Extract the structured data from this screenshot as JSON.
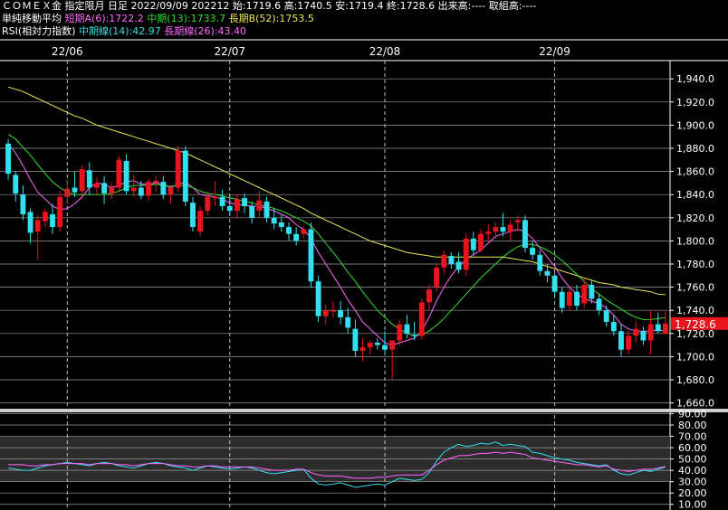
{
  "header": {
    "line1": "ＣＯＭＥＸ金 指定限月 日足 2022/09/09 202212 始:1719.6 高:1740.5 安:1719.4 終:1728.6 出来高:---- 取組高:----",
    "ma_label": "単純移動平均",
    "ma_short": "短期A(6):1722.2",
    "ma_mid": "中期(13):1733.7",
    "ma_long": "長期B(52):1753.5",
    "rsi_label": "RSI(相対力指数)",
    "rsi_mid": "中期線(14):42.97",
    "rsi_long": "長期線(26):43.40"
  },
  "colors": {
    "up": "#e8141e",
    "down": "#33e0ee",
    "ma_short": "#ff66ff",
    "ma_mid": "#33dd33",
    "ma_long": "#e8e855",
    "last_price_bg": "#e8141e"
  },
  "chart_data": [
    {
      "type": "candlestick",
      "title": "ＣＯＭＥＸ金 日足",
      "x_tick_labels": [
        "22/06",
        "22/07",
        "22/08",
        "22/09"
      ],
      "y_ticks": [
        "1,940.0",
        "1,920.0",
        "1,900.0",
        "1,880.0",
        "1,860.0",
        "1,840.0",
        "1,820.0",
        "1,800.0",
        "1,780.0",
        "1,760.0",
        "1,740.0",
        "1,720.0",
        "1,700.0",
        "1,680.0",
        "1,660.0"
      ],
      "ylim": [
        1655,
        1955
      ],
      "last_price": "1,728.6",
      "candles": [
        {
          "o": 1884,
          "h": 1888,
          "l": 1853,
          "c": 1858
        },
        {
          "o": 1857,
          "h": 1860,
          "l": 1834,
          "c": 1841
        },
        {
          "o": 1840,
          "h": 1848,
          "l": 1818,
          "c": 1823
        },
        {
          "o": 1825,
          "h": 1828,
          "l": 1798,
          "c": 1807
        },
        {
          "o": 1808,
          "h": 1822,
          "l": 1784,
          "c": 1818
        },
        {
          "o": 1817,
          "h": 1828,
          "l": 1812,
          "c": 1825
        },
        {
          "o": 1823,
          "h": 1832,
          "l": 1806,
          "c": 1812
        },
        {
          "o": 1812,
          "h": 1843,
          "l": 1808,
          "c": 1838
        },
        {
          "o": 1838,
          "h": 1853,
          "l": 1832,
          "c": 1845
        },
        {
          "o": 1846,
          "h": 1860,
          "l": 1838,
          "c": 1842
        },
        {
          "o": 1843,
          "h": 1865,
          "l": 1836,
          "c": 1862
        },
        {
          "o": 1861,
          "h": 1868,
          "l": 1840,
          "c": 1846
        },
        {
          "o": 1846,
          "h": 1855,
          "l": 1840,
          "c": 1850
        },
        {
          "o": 1850,
          "h": 1856,
          "l": 1832,
          "c": 1841
        },
        {
          "o": 1841,
          "h": 1850,
          "l": 1836,
          "c": 1846
        },
        {
          "o": 1846,
          "h": 1873,
          "l": 1842,
          "c": 1870
        },
        {
          "o": 1869,
          "h": 1875,
          "l": 1840,
          "c": 1843
        },
        {
          "o": 1843,
          "h": 1857,
          "l": 1838,
          "c": 1846
        },
        {
          "o": 1846,
          "h": 1852,
          "l": 1836,
          "c": 1839
        },
        {
          "o": 1839,
          "h": 1854,
          "l": 1835,
          "c": 1851
        },
        {
          "o": 1850,
          "h": 1856,
          "l": 1842,
          "c": 1852
        },
        {
          "o": 1851,
          "h": 1856,
          "l": 1836,
          "c": 1840
        },
        {
          "o": 1840,
          "h": 1848,
          "l": 1832,
          "c": 1846
        },
        {
          "o": 1846,
          "h": 1882,
          "l": 1842,
          "c": 1878
        },
        {
          "o": 1878,
          "h": 1882,
          "l": 1830,
          "c": 1834
        },
        {
          "o": 1833,
          "h": 1838,
          "l": 1808,
          "c": 1812
        },
        {
          "o": 1808,
          "h": 1830,
          "l": 1804,
          "c": 1826
        },
        {
          "o": 1826,
          "h": 1843,
          "l": 1822,
          "c": 1838
        },
        {
          "o": 1838,
          "h": 1852,
          "l": 1830,
          "c": 1838
        },
        {
          "o": 1838,
          "h": 1844,
          "l": 1826,
          "c": 1830
        },
        {
          "o": 1830,
          "h": 1840,
          "l": 1822,
          "c": 1826
        },
        {
          "o": 1826,
          "h": 1840,
          "l": 1820,
          "c": 1836
        },
        {
          "o": 1837,
          "h": 1841,
          "l": 1824,
          "c": 1830
        },
        {
          "o": 1830,
          "h": 1834,
          "l": 1815,
          "c": 1820
        },
        {
          "o": 1826,
          "h": 1843,
          "l": 1820,
          "c": 1835
        },
        {
          "o": 1834,
          "h": 1838,
          "l": 1816,
          "c": 1820
        },
        {
          "o": 1820,
          "h": 1828,
          "l": 1810,
          "c": 1815
        },
        {
          "o": 1816,
          "h": 1822,
          "l": 1808,
          "c": 1812
        },
        {
          "o": 1812,
          "h": 1816,
          "l": 1800,
          "c": 1806
        },
        {
          "o": 1806,
          "h": 1812,
          "l": 1796,
          "c": 1800
        },
        {
          "o": 1806,
          "h": 1812,
          "l": 1802,
          "c": 1810
        },
        {
          "o": 1810,
          "h": 1816,
          "l": 1760,
          "c": 1765
        },
        {
          "o": 1765,
          "h": 1770,
          "l": 1730,
          "c": 1735
        },
        {
          "o": 1735,
          "h": 1745,
          "l": 1728,
          "c": 1740
        },
        {
          "o": 1740,
          "h": 1748,
          "l": 1734,
          "c": 1740
        },
        {
          "o": 1740,
          "h": 1748,
          "l": 1728,
          "c": 1734
        },
        {
          "o": 1734,
          "h": 1742,
          "l": 1720,
          "c": 1725
        },
        {
          "o": 1724,
          "h": 1732,
          "l": 1700,
          "c": 1705
        },
        {
          "o": 1705,
          "h": 1716,
          "l": 1696,
          "c": 1708
        },
        {
          "o": 1708,
          "h": 1714,
          "l": 1702,
          "c": 1712
        },
        {
          "o": 1712,
          "h": 1716,
          "l": 1706,
          "c": 1710
        },
        {
          "o": 1710,
          "h": 1722,
          "l": 1702,
          "c": 1706
        },
        {
          "o": 1706,
          "h": 1712,
          "l": 1680,
          "c": 1714
        },
        {
          "o": 1714,
          "h": 1732,
          "l": 1710,
          "c": 1728
        },
        {
          "o": 1728,
          "h": 1736,
          "l": 1716,
          "c": 1720
        },
        {
          "o": 1719,
          "h": 1730,
          "l": 1714,
          "c": 1718
        },
        {
          "o": 1718,
          "h": 1750,
          "l": 1715,
          "c": 1747
        },
        {
          "o": 1747,
          "h": 1762,
          "l": 1740,
          "c": 1758
        },
        {
          "o": 1760,
          "h": 1780,
          "l": 1756,
          "c": 1777
        },
        {
          "o": 1777,
          "h": 1792,
          "l": 1772,
          "c": 1788
        },
        {
          "o": 1787,
          "h": 1790,
          "l": 1776,
          "c": 1780
        },
        {
          "o": 1782,
          "h": 1790,
          "l": 1772,
          "c": 1775
        },
        {
          "o": 1775,
          "h": 1806,
          "l": 1770,
          "c": 1802
        },
        {
          "o": 1802,
          "h": 1808,
          "l": 1788,
          "c": 1792
        },
        {
          "o": 1792,
          "h": 1810,
          "l": 1790,
          "c": 1806
        },
        {
          "o": 1806,
          "h": 1814,
          "l": 1800,
          "c": 1808
        },
        {
          "o": 1808,
          "h": 1816,
          "l": 1802,
          "c": 1812
        },
        {
          "o": 1812,
          "h": 1824,
          "l": 1804,
          "c": 1808
        },
        {
          "o": 1808,
          "h": 1818,
          "l": 1800,
          "c": 1814
        },
        {
          "o": 1816,
          "h": 1822,
          "l": 1808,
          "c": 1818
        },
        {
          "o": 1818,
          "h": 1822,
          "l": 1790,
          "c": 1794
        },
        {
          "o": 1794,
          "h": 1800,
          "l": 1784,
          "c": 1788
        },
        {
          "o": 1788,
          "h": 1792,
          "l": 1770,
          "c": 1774
        },
        {
          "o": 1774,
          "h": 1780,
          "l": 1764,
          "c": 1770
        },
        {
          "o": 1770,
          "h": 1772,
          "l": 1752,
          "c": 1756
        },
        {
          "o": 1756,
          "h": 1760,
          "l": 1738,
          "c": 1742
        },
        {
          "o": 1744,
          "h": 1760,
          "l": 1740,
          "c": 1756
        },
        {
          "o": 1756,
          "h": 1762,
          "l": 1740,
          "c": 1744
        },
        {
          "o": 1746,
          "h": 1768,
          "l": 1742,
          "c": 1762
        },
        {
          "o": 1762,
          "h": 1766,
          "l": 1746,
          "c": 1750
        },
        {
          "o": 1750,
          "h": 1754,
          "l": 1736,
          "c": 1740
        },
        {
          "o": 1740,
          "h": 1744,
          "l": 1726,
          "c": 1730
        },
        {
          "o": 1730,
          "h": 1736,
          "l": 1718,
          "c": 1722
        },
        {
          "o": 1722,
          "h": 1728,
          "l": 1700,
          "c": 1706
        },
        {
          "o": 1706,
          "h": 1722,
          "l": 1702,
          "c": 1718
        },
        {
          "o": 1718,
          "h": 1730,
          "l": 1712,
          "c": 1724
        },
        {
          "o": 1722,
          "h": 1726,
          "l": 1710,
          "c": 1714
        },
        {
          "o": 1714,
          "h": 1740,
          "l": 1702,
          "c": 1728
        },
        {
          "o": 1728,
          "h": 1738,
          "l": 1720,
          "c": 1722
        },
        {
          "o": 1719.6,
          "h": 1740.5,
          "l": 1719.4,
          "c": 1728.6
        }
      ],
      "series": [
        {
          "name": "短期A(6)",
          "values": [
            1884,
            1876,
            1865,
            1853,
            1842,
            1836,
            1830,
            1827,
            1828,
            1832,
            1838,
            1846,
            1850,
            1849,
            1846,
            1848,
            1851,
            1852,
            1849,
            1849,
            1850,
            1849,
            1846,
            1849,
            1851,
            1846,
            1840,
            1839,
            1838,
            1836,
            1833,
            1831,
            1831,
            1830,
            1830,
            1828,
            1826,
            1823,
            1820,
            1814,
            1810,
            1802,
            1790,
            1780,
            1770,
            1760,
            1749,
            1740,
            1730,
            1724,
            1718,
            1712,
            1710,
            1712,
            1714,
            1716,
            1722,
            1734,
            1748,
            1760,
            1770,
            1778,
            1784,
            1788,
            1792,
            1798,
            1804,
            1806,
            1808,
            1810,
            1808,
            1802,
            1794,
            1786,
            1778,
            1768,
            1760,
            1754,
            1750,
            1748,
            1746,
            1742,
            1736,
            1728,
            1724,
            1722,
            1722,
            1722,
            1723,
            1722.2
          ]
        },
        {
          "name": "中期(13)",
          "values": [
            1892,
            1888,
            1881,
            1874,
            1866,
            1858,
            1851,
            1846,
            1842,
            1840,
            1840,
            1840,
            1840,
            1840,
            1841,
            1843,
            1846,
            1848,
            1848,
            1848,
            1849,
            1848,
            1847,
            1848,
            1848,
            1846,
            1843,
            1841,
            1840,
            1839,
            1837,
            1836,
            1834,
            1833,
            1831,
            1830,
            1828,
            1826,
            1823,
            1820,
            1817,
            1813,
            1806,
            1798,
            1790,
            1782,
            1773,
            1765,
            1756,
            1748,
            1740,
            1734,
            1728,
            1724,
            1720,
            1718,
            1719,
            1722,
            1727,
            1733,
            1740,
            1747,
            1754,
            1761,
            1768,
            1774,
            1780,
            1786,
            1791,
            1795,
            1797,
            1797,
            1795,
            1792,
            1788,
            1783,
            1777,
            1771,
            1765,
            1759,
            1754,
            1749,
            1745,
            1741,
            1737,
            1734,
            1732,
            1732,
            1733,
            1733.7
          ]
        },
        {
          "name": "長期B(52)",
          "values": [
            1933,
            1931,
            1929,
            1926,
            1923,
            1920,
            1917,
            1914,
            1911,
            1908,
            1906,
            1903,
            1900,
            1898,
            1896,
            1894,
            1892,
            1890,
            1888,
            1886,
            1884,
            1882,
            1880,
            1878,
            1876,
            1873,
            1870,
            1867,
            1864,
            1861,
            1858,
            1855,
            1852,
            1849,
            1846,
            1843,
            1840,
            1837,
            1834,
            1831,
            1828,
            1824,
            1821,
            1818,
            1815,
            1812,
            1809,
            1806,
            1803,
            1800,
            1798,
            1796,
            1794,
            1792,
            1790,
            1789,
            1788,
            1787,
            1786,
            1786,
            1786,
            1786,
            1786,
            1786,
            1786,
            1786,
            1786,
            1786,
            1785,
            1784,
            1783,
            1782,
            1780,
            1778,
            1776,
            1774,
            1772,
            1770,
            1768,
            1766,
            1764,
            1763,
            1762,
            1760,
            1759,
            1758,
            1757,
            1756,
            1754,
            1753.5
          ]
        }
      ]
    },
    {
      "type": "line",
      "title": "RSI(相対力指数)",
      "y_ticks": [
        "90.00",
        "80.00",
        "70.00",
        "60.00",
        "50.00",
        "40.00",
        "30.00",
        "20.00",
        "10.00"
      ],
      "ylim": [
        5,
        92
      ],
      "series": [
        {
          "name": "中期線(14)",
          "values": [
            42,
            41,
            40,
            40,
            42,
            44,
            45,
            46,
            47,
            46,
            45,
            44,
            46,
            47,
            46,
            44,
            43,
            42,
            44,
            46,
            47,
            46,
            44,
            43,
            42,
            40,
            42,
            44,
            43,
            42,
            41,
            42,
            43,
            42,
            40,
            38,
            37,
            38,
            39,
            40,
            41,
            33,
            28,
            27,
            28,
            29,
            27,
            25,
            26,
            27,
            28,
            27,
            30,
            33,
            32,
            31,
            32,
            38,
            48,
            56,
            60,
            63,
            61,
            62,
            64,
            63,
            65,
            62,
            63,
            62,
            61,
            56,
            55,
            53,
            51,
            50,
            49,
            47,
            46,
            45,
            44,
            45,
            40,
            37,
            36,
            38,
            40,
            39,
            41,
            42.97
          ]
        },
        {
          "name": "長期線(26)",
          "values": [
            45,
            45,
            45,
            44,
            44,
            45,
            45,
            46,
            46,
            46,
            46,
            45,
            46,
            46,
            46,
            45,
            45,
            44,
            45,
            46,
            46,
            46,
            45,
            44,
            44,
            43,
            43,
            44,
            44,
            43,
            43,
            43,
            43,
            43,
            42,
            41,
            40,
            40,
            40,
            41,
            41,
            38,
            36,
            35,
            35,
            35,
            34,
            33,
            33,
            33,
            34,
            34,
            35,
            36,
            36,
            36,
            36,
            40,
            45,
            49,
            51,
            53,
            53,
            54,
            55,
            55,
            56,
            55,
            56,
            55,
            54,
            51,
            50,
            49,
            48,
            47,
            46,
            45,
            45,
            44,
            43,
            44,
            41,
            40,
            39,
            40,
            41,
            41,
            42,
            43.4
          ]
        }
      ]
    }
  ]
}
